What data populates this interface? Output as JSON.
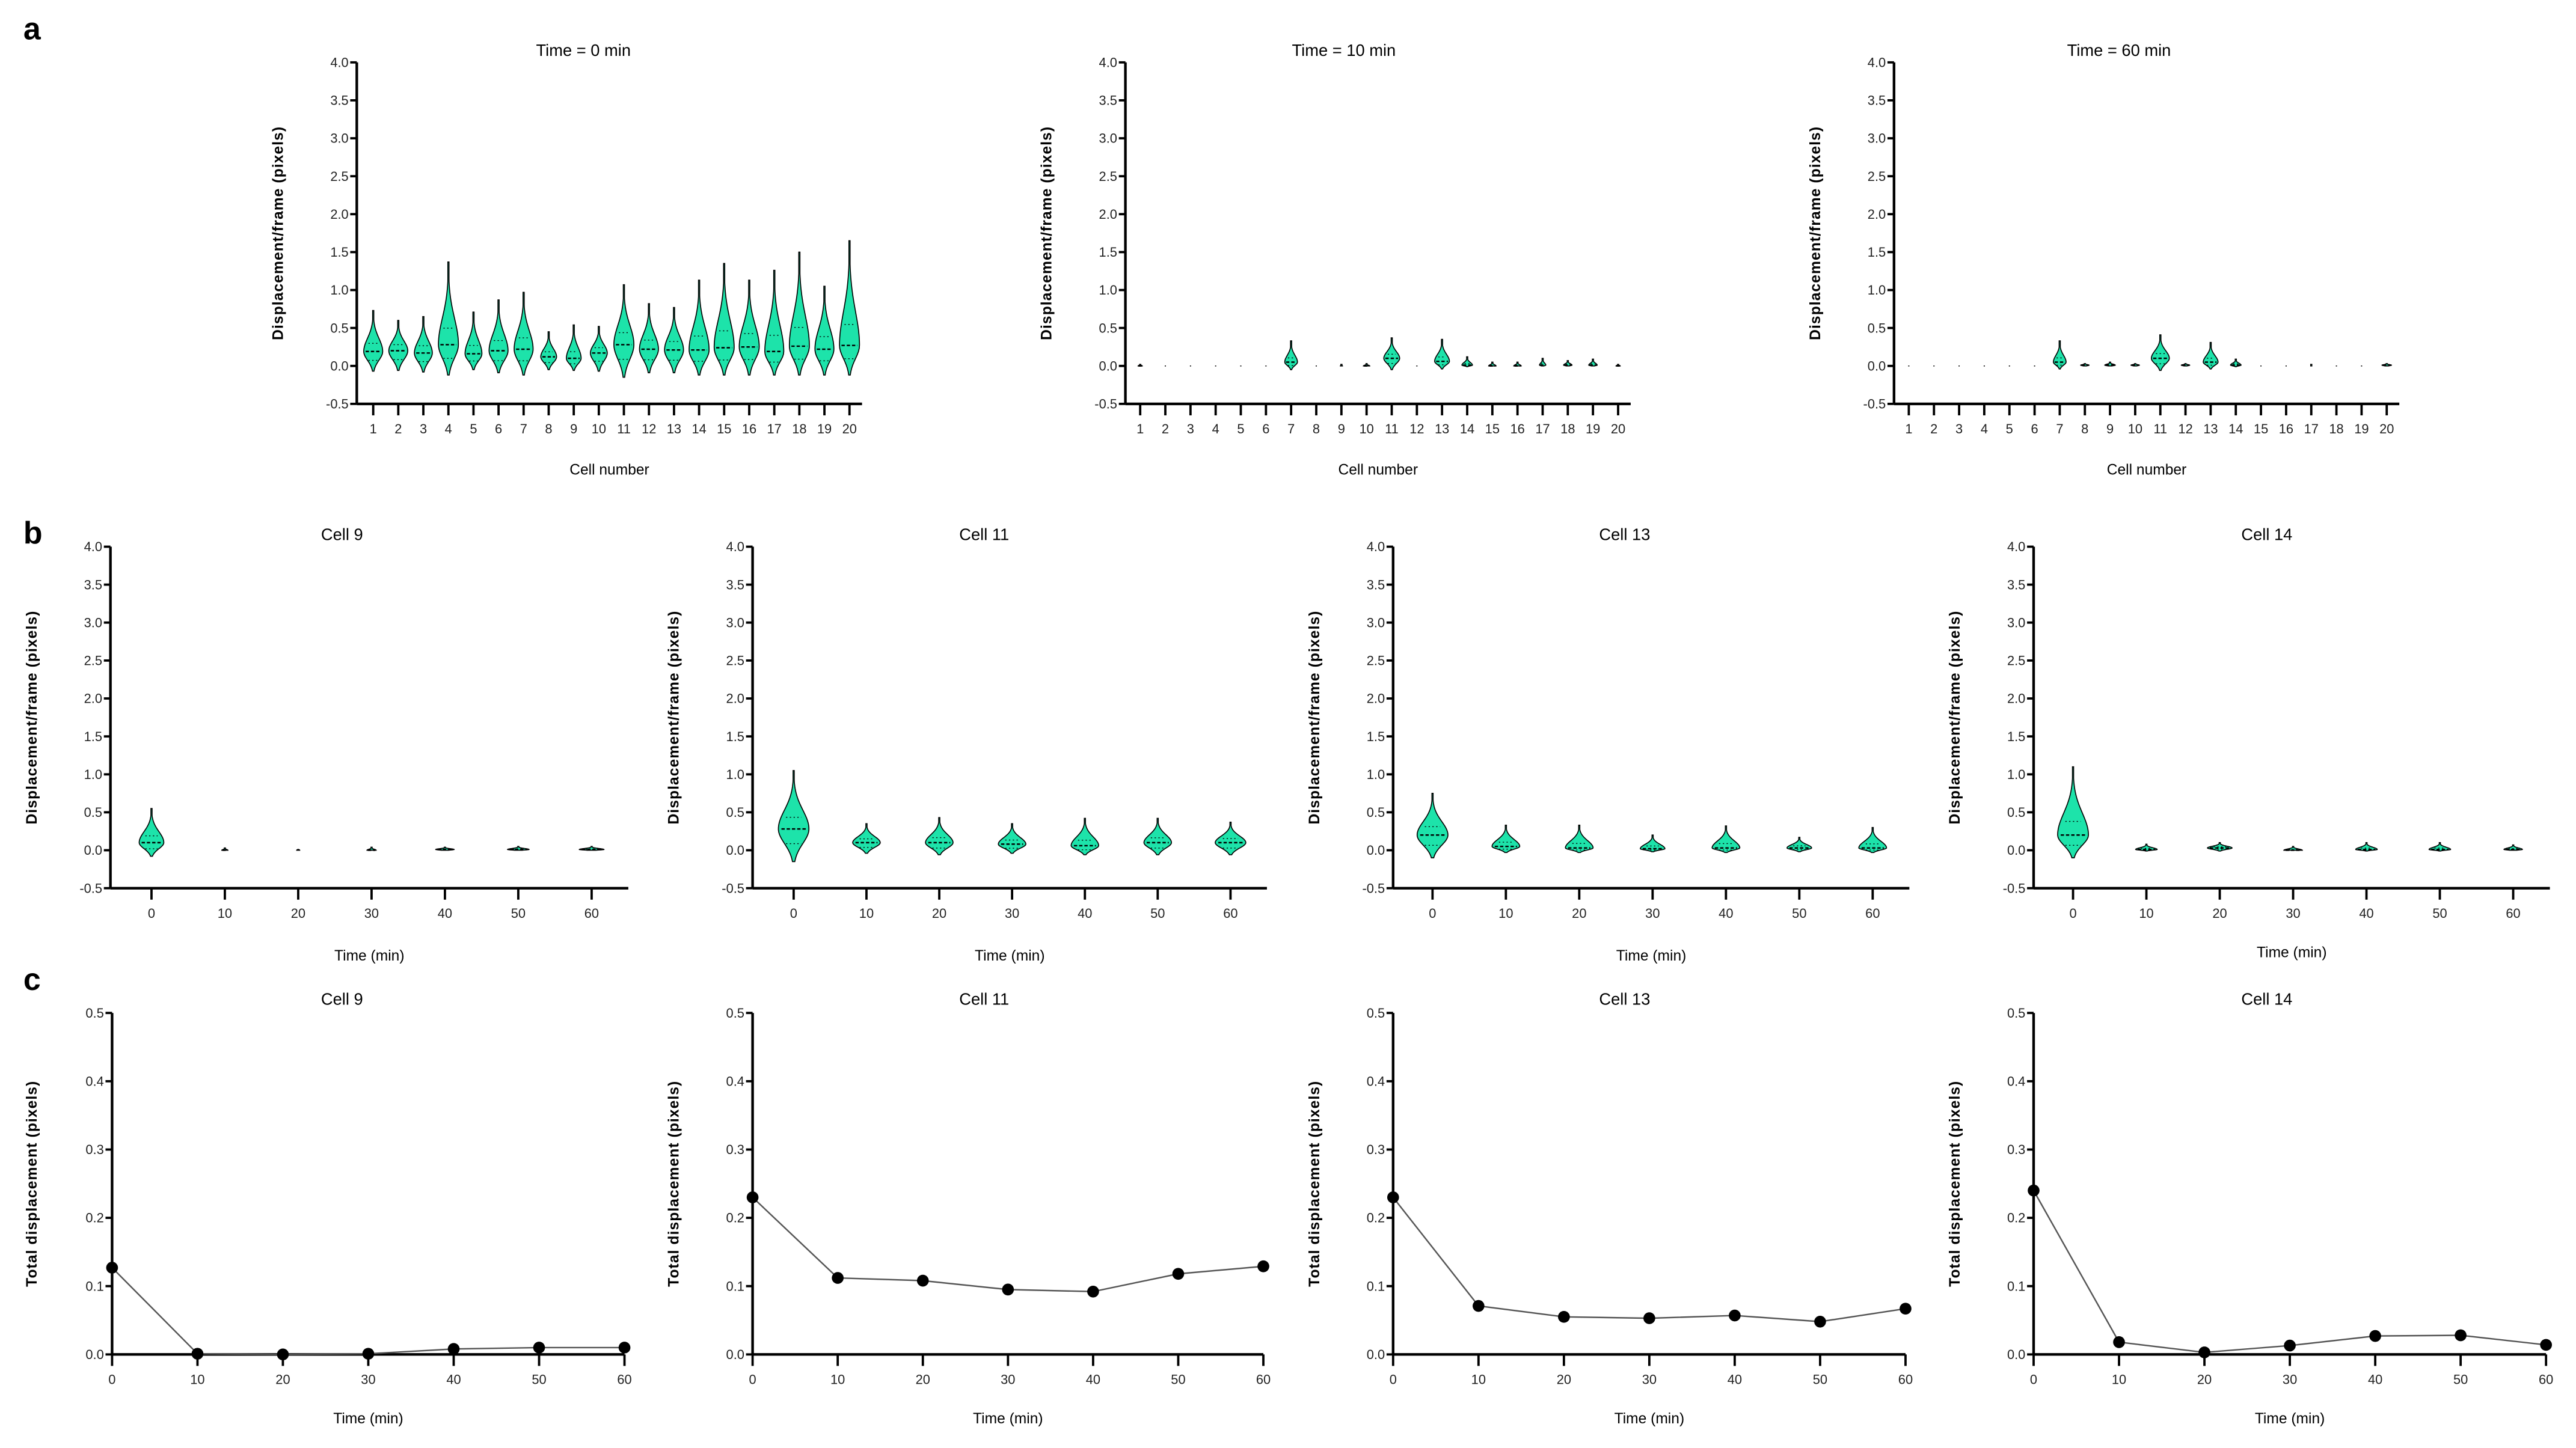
{
  "panel_labels": [
    "a",
    "b",
    "c"
  ],
  "colors": {
    "violin_fill": "#1de3aa",
    "axis": "#000000",
    "line": "#555555",
    "marker": "#000000"
  },
  "chart_data": [
    {
      "id": "a1",
      "panel": "a",
      "type": "violin",
      "title": "Time = 0 min",
      "xlabel": "Cell number",
      "ylabel": "Displacement/frame (pixels)",
      "ylim": [
        -0.5,
        4.0
      ],
      "yticks": [
        "-0.5",
        "0.0",
        "0.5",
        "1.0",
        "1.5",
        "2.0",
        "2.5",
        "3.0",
        "3.5",
        "4.0"
      ],
      "categories": [
        "1",
        "2",
        "3",
        "4",
        "5",
        "6",
        "7",
        "8",
        "9",
        "10",
        "11",
        "12",
        "13",
        "14",
        "15",
        "16",
        "17",
        "18",
        "19",
        "20"
      ],
      "min": [
        -0.07,
        -0.06,
        -0.08,
        -0.12,
        -0.05,
        -0.09,
        -0.12,
        -0.05,
        -0.06,
        -0.07,
        -0.15,
        -0.09,
        -0.09,
        -0.12,
        -0.12,
        -0.12,
        -0.12,
        -0.12,
        -0.12,
        -0.12
      ],
      "median": [
        0.19,
        0.2,
        0.17,
        0.28,
        0.16,
        0.2,
        0.22,
        0.12,
        0.1,
        0.17,
        0.28,
        0.22,
        0.21,
        0.21,
        0.24,
        0.25,
        0.19,
        0.26,
        0.22,
        0.27
      ],
      "max": [
        0.73,
        0.6,
        0.65,
        1.37,
        0.71,
        0.87,
        0.97,
        0.45,
        0.54,
        0.52,
        1.07,
        0.82,
        0.77,
        1.13,
        1.35,
        1.13,
        1.26,
        1.5,
        1.05,
        1.65
      ],
      "width": [
        0.9,
        0.9,
        0.85,
        0.95,
        0.8,
        0.9,
        0.9,
        0.75,
        0.7,
        0.8,
        0.95,
        0.9,
        0.9,
        0.95,
        0.95,
        0.95,
        0.9,
        0.95,
        0.9,
        0.95
      ]
    },
    {
      "id": "a2",
      "panel": "a",
      "type": "violin",
      "title": "Time = 10 min",
      "xlabel": "Cell number",
      "ylabel": "Displacement/frame (pixels)",
      "ylim": [
        -0.5,
        4.0
      ],
      "yticks": [
        "-0.5",
        "0.0",
        "0.5",
        "1.0",
        "1.5",
        "2.0",
        "2.5",
        "3.0",
        "3.5",
        "4.0"
      ],
      "categories": [
        "1",
        "2",
        "3",
        "4",
        "5",
        "6",
        "7",
        "8",
        "9",
        "10",
        "11",
        "12",
        "13",
        "14",
        "15",
        "16",
        "17",
        "18",
        "19",
        "20"
      ],
      "min": [
        0,
        0,
        0,
        0,
        0,
        0,
        -0.05,
        0,
        0,
        0,
        -0.05,
        0,
        -0.04,
        -0.01,
        0,
        0,
        0,
        0,
        0,
        0
      ],
      "median": [
        0,
        0,
        0,
        0,
        0,
        0,
        0.05,
        0,
        0,
        0,
        0.1,
        0,
        0.06,
        0.01,
        0,
        0,
        0.01,
        0.01,
        0.01,
        0
      ],
      "max": [
        0.02,
        0.0,
        0.0,
        0.0,
        0.0,
        0.0,
        0.33,
        0.0,
        0.02,
        0.03,
        0.37,
        0.0,
        0.35,
        0.12,
        0.05,
        0.05,
        0.1,
        0.07,
        0.09,
        0.02
      ],
      "width": [
        0.2,
        0.05,
        0.05,
        0.05,
        0.05,
        0.05,
        0.6,
        0.05,
        0.1,
        0.3,
        0.75,
        0.05,
        0.7,
        0.5,
        0.35,
        0.35,
        0.3,
        0.4,
        0.4,
        0.2
      ]
    },
    {
      "id": "a3",
      "panel": "a",
      "type": "violin",
      "title": "Time = 60 min",
      "xlabel": "Cell number",
      "ylabel": "Displacement/frame (pixels)",
      "ylim": [
        -0.5,
        4.0
      ],
      "yticks": [
        "-0.5",
        "0.0",
        "0.5",
        "1.0",
        "1.5",
        "2.0",
        "2.5",
        "3.0",
        "3.5",
        "4.0"
      ],
      "categories": [
        "1",
        "2",
        "3",
        "4",
        "5",
        "6",
        "7",
        "8",
        "9",
        "10",
        "11",
        "12",
        "13",
        "14",
        "15",
        "16",
        "17",
        "18",
        "19",
        "20"
      ],
      "min": [
        0,
        0,
        0,
        0,
        0,
        0,
        -0.04,
        0,
        0,
        0,
        -0.06,
        0,
        -0.04,
        -0.01,
        0,
        0,
        0,
        0,
        0,
        0
      ],
      "median": [
        0,
        0,
        0,
        0,
        0,
        0,
        0.05,
        0.01,
        0.01,
        0.01,
        0.1,
        0.01,
        0.05,
        0.01,
        0,
        0,
        0,
        0,
        0,
        0.01
      ],
      "max": [
        0,
        0,
        0,
        0,
        0,
        0,
        0.33,
        0.03,
        0.05,
        0.03,
        0.41,
        0.03,
        0.31,
        0.09,
        0,
        0,
        0.02,
        0,
        0,
        0.03
      ],
      "width": [
        0.05,
        0.05,
        0.05,
        0.05,
        0.05,
        0.05,
        0.6,
        0.4,
        0.5,
        0.4,
        0.85,
        0.4,
        0.7,
        0.5,
        0.05,
        0.05,
        0.05,
        0.05,
        0.05,
        0.45
      ]
    },
    {
      "id": "b1",
      "panel": "b",
      "type": "violin",
      "title": "Cell 9",
      "xlabel": "Time (min)",
      "ylabel": "Displacement/frame (pixels)",
      "ylim": [
        -0.5,
        4.0
      ],
      "yticks": [
        "-0.5",
        "0.0",
        "0.5",
        "1.0",
        "1.5",
        "2.0",
        "2.5",
        "3.0",
        "3.5",
        "4.0"
      ],
      "categories": [
        "0",
        "10",
        "20",
        "30",
        "40",
        "50",
        "60"
      ],
      "min": [
        -0.08,
        0,
        0,
        0,
        0,
        0,
        0
      ],
      "median": [
        0.1,
        0,
        0,
        0,
        0.01,
        0.01,
        0.01
      ],
      "max": [
        0.55,
        0.03,
        0.01,
        0.04,
        0.04,
        0.05,
        0.05
      ],
      "width": [
        0.4,
        0.1,
        0.05,
        0.15,
        0.3,
        0.35,
        0.4
      ]
    },
    {
      "id": "b2",
      "panel": "b",
      "type": "violin",
      "title": "Cell 11",
      "xlabel": "Time (min)",
      "ylabel": "Displacement/frame (pixels)",
      "ylim": [
        -0.5,
        4.0
      ],
      "yticks": [
        "-0.5",
        "0.0",
        "0.5",
        "1.0",
        "1.5",
        "2.0",
        "2.5",
        "3.0",
        "3.5",
        "4.0"
      ],
      "categories": [
        "0",
        "10",
        "20",
        "30",
        "40",
        "50",
        "60"
      ],
      "min": [
        -0.15,
        -0.04,
        -0.06,
        -0.04,
        -0.06,
        -0.06,
        -0.06
      ],
      "median": [
        0.28,
        0.1,
        0.1,
        0.08,
        0.06,
        0.1,
        0.1
      ],
      "max": [
        1.05,
        0.35,
        0.43,
        0.35,
        0.42,
        0.42,
        0.37
      ],
      "width": [
        0.5,
        0.45,
        0.45,
        0.45,
        0.45,
        0.45,
        0.5
      ]
    },
    {
      "id": "b3",
      "panel": "b",
      "type": "violin",
      "title": "Cell 13",
      "xlabel": "Time (min)",
      "ylabel": "Displacement/frame (pixels)",
      "ylim": [
        -0.5,
        4.0
      ],
      "yticks": [
        "-0.5",
        "0.0",
        "0.5",
        "1.0",
        "1.5",
        "2.0",
        "2.5",
        "3.0",
        "3.5",
        "4.0"
      ],
      "categories": [
        "0",
        "10",
        "20",
        "30",
        "40",
        "50",
        "60"
      ],
      "min": [
        -0.1,
        -0.03,
        -0.03,
        -0.02,
        -0.03,
        -0.02,
        -0.03
      ],
      "median": [
        0.2,
        0.05,
        0.03,
        0.02,
        0.03,
        0.03,
        0.03
      ],
      "max": [
        0.75,
        0.33,
        0.33,
        0.2,
        0.32,
        0.17,
        0.3
      ],
      "width": [
        0.5,
        0.45,
        0.45,
        0.4,
        0.45,
        0.4,
        0.45
      ]
    },
    {
      "id": "b4",
      "panel": "b",
      "type": "violin",
      "title": "Cell 14",
      "xlabel": "Time (min)",
      "ylabel": "Displacement/frame (pixels)",
      "ylim": [
        -0.5,
        4.0
      ],
      "yticks": [
        "-0.5",
        "0.0",
        "0.5",
        "1.0",
        "1.5",
        "2.0",
        "2.5",
        "3.0",
        "3.5",
        "4.0"
      ],
      "categories": [
        "0",
        "10",
        "20",
        "30",
        "40",
        "50",
        "60"
      ],
      "min": [
        -0.1,
        -0.01,
        -0.01,
        0,
        -0.01,
        -0.01,
        0
      ],
      "median": [
        0.2,
        0.01,
        0.03,
        0.0,
        0.01,
        0.01,
        0.01
      ],
      "max": [
        1.1,
        0.08,
        0.1,
        0.05,
        0.1,
        0.1,
        0.07
      ],
      "width": [
        0.5,
        0.35,
        0.4,
        0.3,
        0.35,
        0.35,
        0.3
      ]
    },
    {
      "id": "c1",
      "panel": "c",
      "type": "line",
      "title": "Cell 9",
      "xlabel": "Time (min)",
      "ylabel": "Total displacement (pixels)",
      "ylim": [
        0,
        0.5
      ],
      "yticks": [
        "0.0",
        "0.1",
        "0.2",
        "0.3",
        "0.4",
        "0.5"
      ],
      "x": [
        0,
        10,
        20,
        30,
        40,
        50,
        60
      ],
      "xticks": [
        "0",
        "10",
        "20",
        "30",
        "40",
        "50",
        "60"
      ],
      "y": [
        0.127,
        0.001,
        0.0,
        0.001,
        0.008,
        0.01,
        0.01
      ]
    },
    {
      "id": "c2",
      "panel": "c",
      "type": "line",
      "title": "Cell 11",
      "xlabel": "Time (min)",
      "ylabel": "Total displacement (pixels)",
      "ylim": [
        0,
        0.5
      ],
      "yticks": [
        "0.0",
        "0.1",
        "0.2",
        "0.3",
        "0.4",
        "0.5"
      ],
      "x": [
        0,
        10,
        20,
        30,
        40,
        50,
        60
      ],
      "xticks": [
        "0",
        "10",
        "20",
        "30",
        "40",
        "50",
        "60"
      ],
      "y": [
        0.23,
        0.112,
        0.108,
        0.095,
        0.092,
        0.118,
        0.129
      ]
    },
    {
      "id": "c3",
      "panel": "c",
      "type": "line",
      "title": "Cell 13",
      "xlabel": "Time (min)",
      "ylabel": "Total displacement (pixels)",
      "ylim": [
        0,
        0.5
      ],
      "yticks": [
        "0.0",
        "0.1",
        "0.2",
        "0.3",
        "0.4",
        "0.5"
      ],
      "x": [
        0,
        10,
        20,
        30,
        40,
        50,
        60
      ],
      "xticks": [
        "0",
        "10",
        "20",
        "30",
        "40",
        "50",
        "60"
      ],
      "y": [
        0.23,
        0.071,
        0.055,
        0.053,
        0.057,
        0.048,
        0.067
      ]
    },
    {
      "id": "c4",
      "panel": "c",
      "type": "line",
      "title": "Cell 14",
      "xlabel": "Time (min)",
      "ylabel": "Total displacement (pixels)",
      "ylim": [
        0,
        0.5
      ],
      "yticks": [
        "0.0",
        "0.1",
        "0.2",
        "0.3",
        "0.4",
        "0.5"
      ],
      "x": [
        0,
        10,
        20,
        30,
        40,
        50,
        60
      ],
      "xticks": [
        "0",
        "10",
        "20",
        "30",
        "40",
        "50",
        "60"
      ],
      "y": [
        0.24,
        0.018,
        0.003,
        0.013,
        0.027,
        0.028,
        0.014
      ]
    }
  ]
}
